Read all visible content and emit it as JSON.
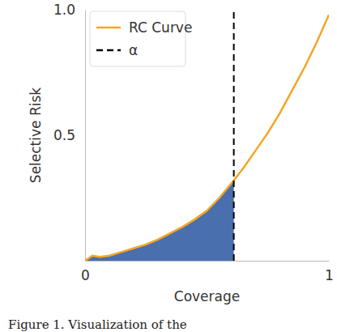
{
  "chart_data": {
    "type": "line",
    "xlabel": "Coverage",
    "ylabel": "Selective Risk",
    "annotations": [
      "Figure 1. Visualization of the"
    ],
    "series": [
      {
        "name": "RC Curve",
        "color": "#f5a524",
        "line_style": "solid",
        "x": [
          0,
          0.03,
          0.06,
          0.1,
          0.15,
          0.2,
          0.25,
          0.3,
          0.35,
          0.4,
          0.45,
          0.5,
          0.55,
          0.61,
          0.65,
          0.7,
          0.75,
          0.8,
          0.85,
          0.9,
          0.95,
          1.0
        ],
        "values": [
          0,
          0.02,
          0.015,
          0.02,
          0.035,
          0.05,
          0.065,
          0.085,
          0.11,
          0.135,
          0.165,
          0.2,
          0.25,
          0.32,
          0.37,
          0.44,
          0.51,
          0.59,
          0.68,
          0.77,
          0.87,
          0.98
        ]
      },
      {
        "name": "α",
        "type": "vline",
        "color": "#000000",
        "line_style": "dashed",
        "x": 0.61
      }
    ],
    "xlim": [
      0,
      1
    ],
    "ylim": [
      0,
      1
    ],
    "xticks": [
      0,
      1
    ],
    "yticks": [
      0.5,
      {
        "value": 1,
        "label": "1.0"
      }
    ],
    "legend": "upper left",
    "grid": false
  }
}
